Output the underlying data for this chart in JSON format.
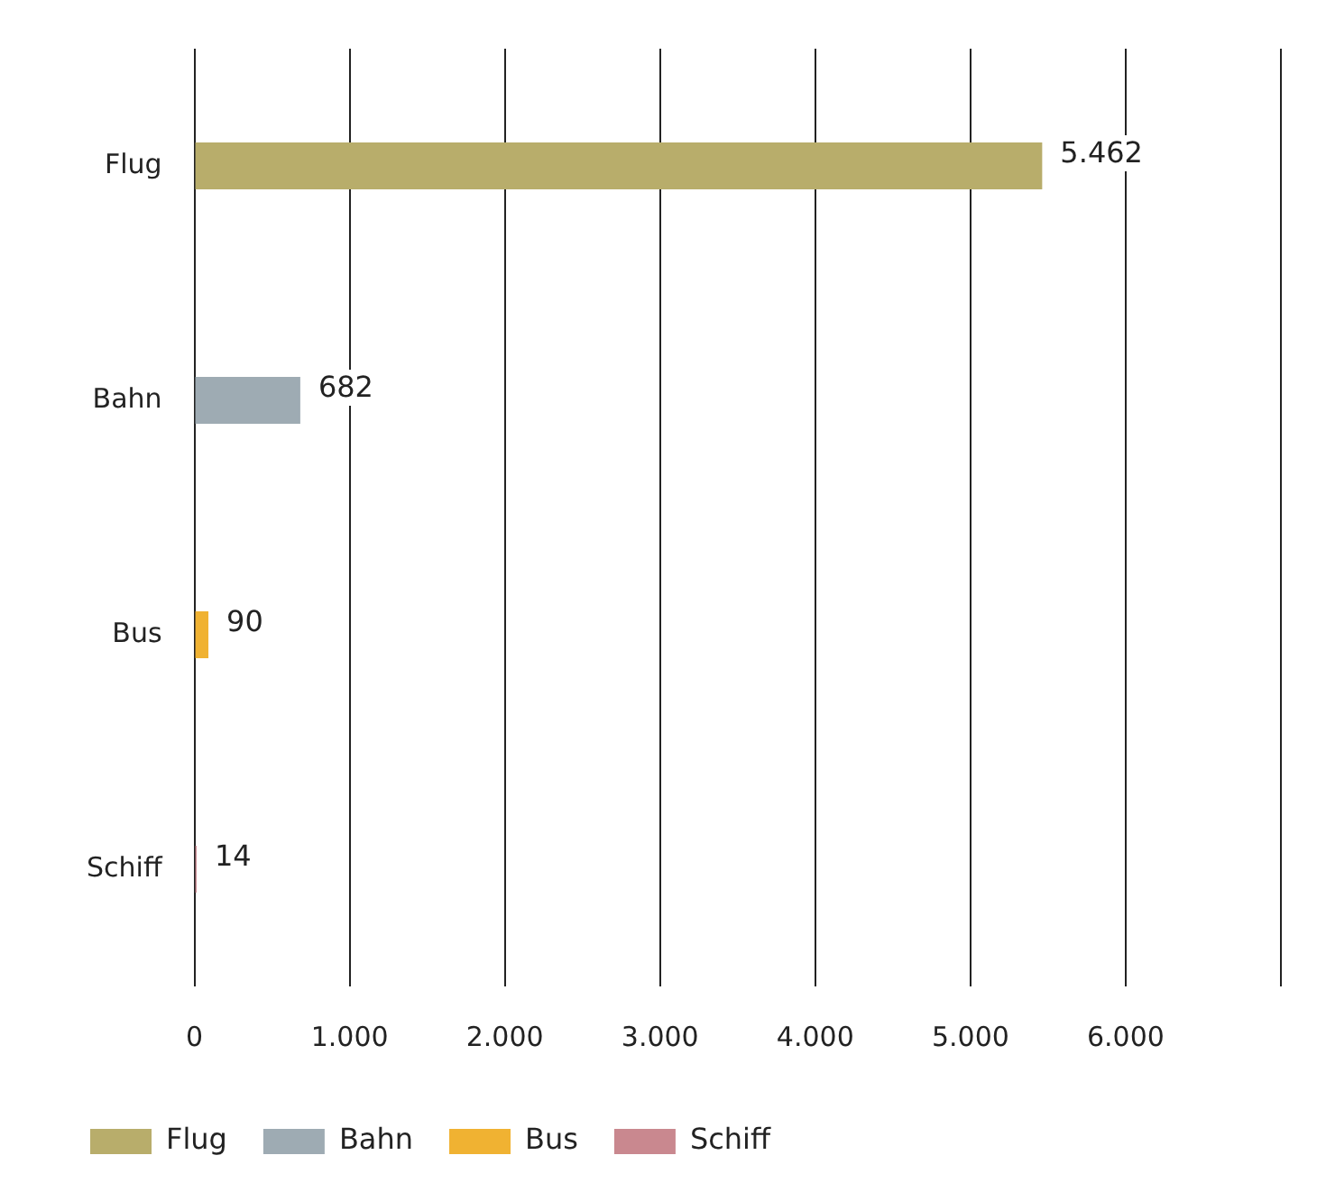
{
  "chart_data": {
    "type": "bar",
    "orientation": "horizontal",
    "categories": [
      "Flug",
      "Bahn",
      "Bus",
      "Schiff"
    ],
    "series": [
      {
        "name": "Flug",
        "color": "#b8ad6b",
        "values": [
          5462,
          null,
          null,
          null
        ],
        "value_labels": [
          "5.462",
          null,
          null,
          null
        ]
      },
      {
        "name": "Bahn",
        "color": "#9eabb3",
        "values": [
          null,
          682,
          null,
          null
        ],
        "value_labels": [
          null,
          "682",
          null,
          null
        ]
      },
      {
        "name": "Bus",
        "color": "#f0b232",
        "values": [
          null,
          null,
          90,
          null
        ],
        "value_labels": [
          null,
          null,
          "90",
          null
        ]
      },
      {
        "name": "Schiff",
        "color": "#c9888f",
        "values": [
          null,
          null,
          null,
          14
        ],
        "value_labels": [
          null,
          null,
          null,
          "14"
        ]
      }
    ],
    "xlim": [
      0,
      7000
    ],
    "xticks": [
      0,
      {
        "value": 1000,
        "label": "1.000"
      },
      {
        "value": 2000,
        "label": "2.000"
      },
      {
        "value": 3000,
        "label": "3.000"
      },
      {
        "value": 4000,
        "label": "4.000"
      },
      {
        "value": 5000,
        "label": "5.000"
      },
      {
        "value": 6000,
        "label": "6.000"
      },
      {
        "value": 7000,
        "label": null
      }
    ],
    "grid": "x",
    "legend": "bottom"
  }
}
